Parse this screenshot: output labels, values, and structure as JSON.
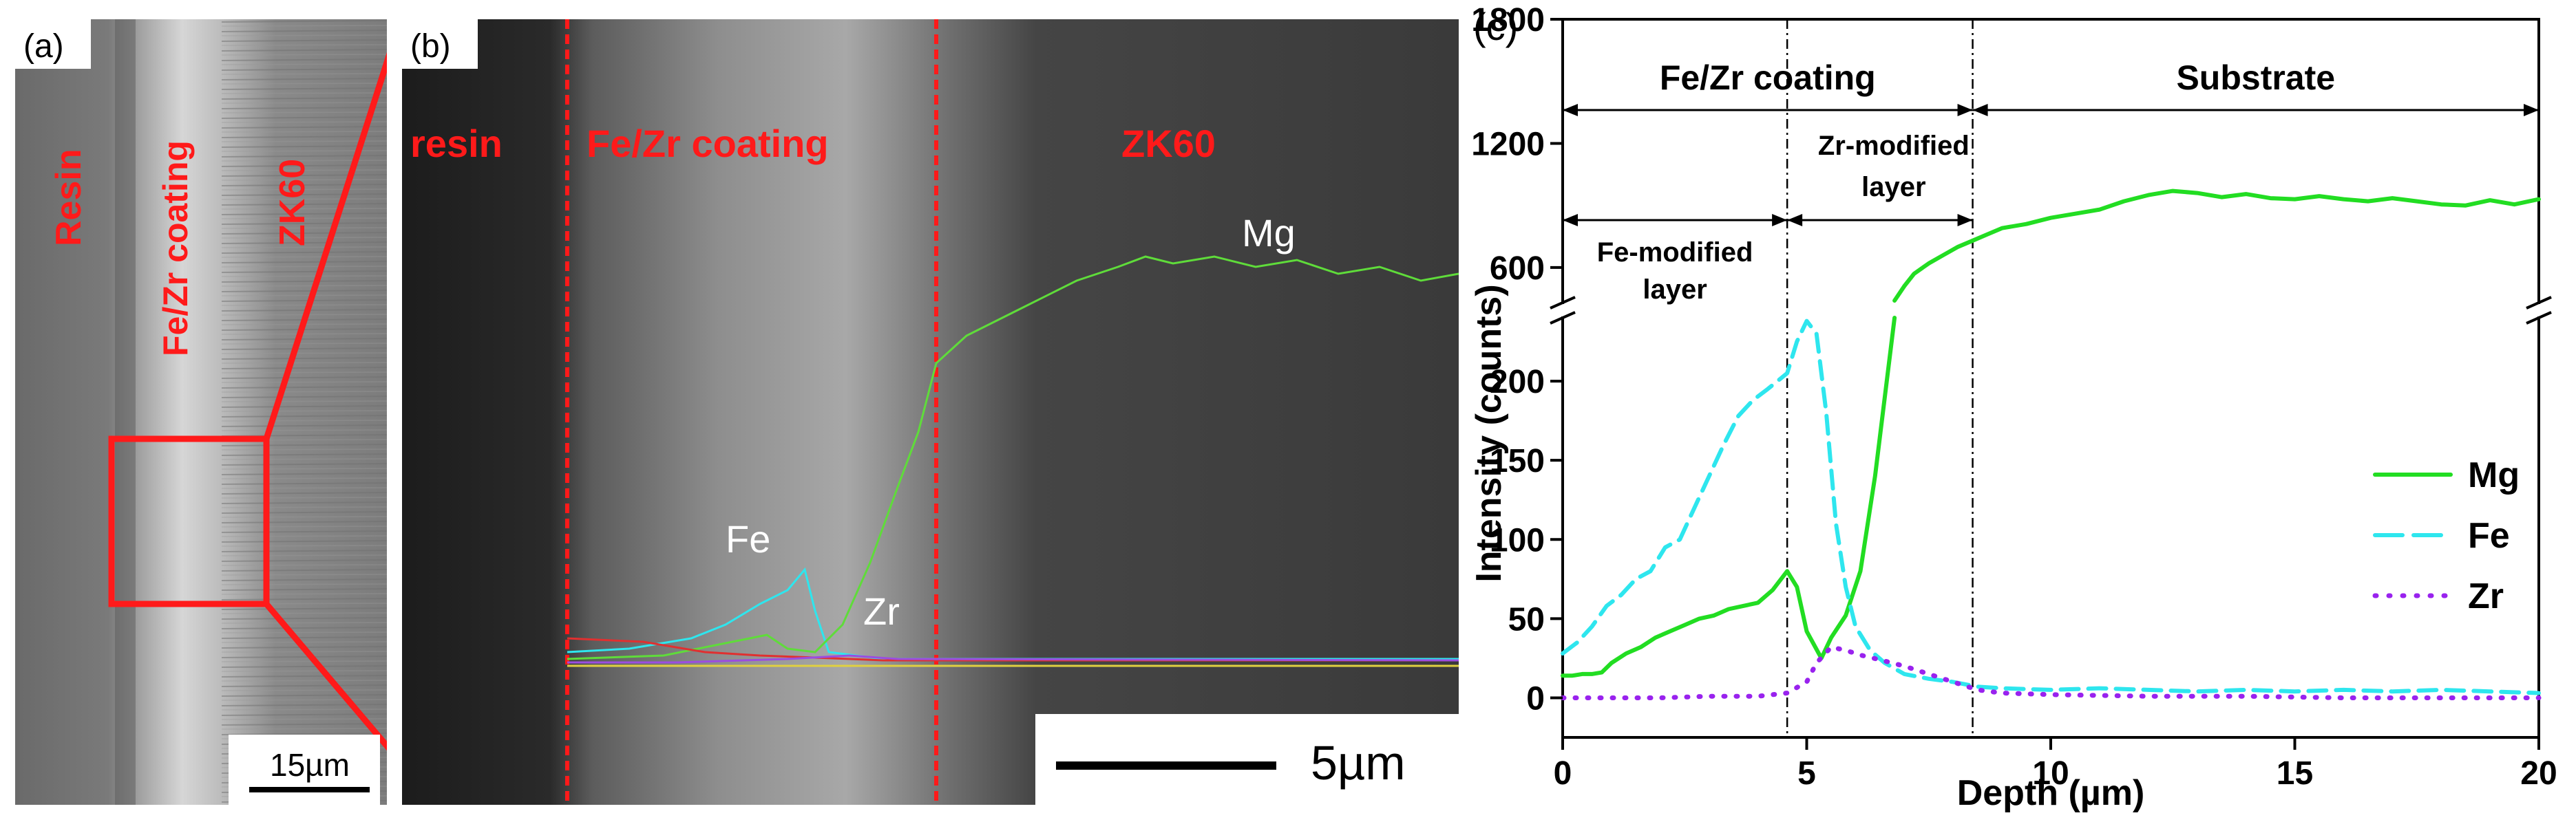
{
  "panel_a": {
    "label": "(a)",
    "text_resin": "Resin",
    "text_coating": "Fe/Zr coating",
    "text_substrate": "ZK60",
    "scalebar": "15µm"
  },
  "panel_b": {
    "label": "(b)",
    "region_resin": "resin",
    "region_coating": "Fe/Zr coating",
    "region_substrate": "ZK60",
    "trace_mg": "Mg",
    "trace_fe": "Fe",
    "trace_zr": "Zr",
    "scalebar": "5µm"
  },
  "colors": {
    "annotation_red": "#ff1a1a",
    "mg": "#22dd22",
    "fe": "#2ee6ee",
    "zr": "#9922ee"
  },
  "chart_data": {
    "type": "line",
    "panel_label": "(c)",
    "xlabel": "Depth (µm)",
    "ylabel": "Intensity (counts)",
    "xlim": [
      0,
      20
    ],
    "x_ticks": [
      0,
      5,
      10,
      15,
      20
    ],
    "y_axis_break": true,
    "y_lower_range": [
      -25,
      240
    ],
    "y_lower_ticks": [
      0,
      50,
      100,
      150,
      200
    ],
    "y_upper_range": [
      430,
      1800
    ],
    "y_upper_ticks": [
      600,
      1200,
      1800
    ],
    "legend": [
      "Mg",
      "Fe",
      "Zr"
    ],
    "legend_position": "lower-right",
    "region_labels": {
      "coating": "Fe/Zr coating",
      "substrate": "Substrate",
      "fe_layer_1": "Fe-modified",
      "fe_layer_2": "layer",
      "zr_layer_1": "Zr-modified",
      "zr_layer_2": "layer"
    },
    "boundaries": [
      4.6,
      8.4
    ],
    "series": [
      {
        "name": "Mg",
        "style": "solid",
        "x": [
          0,
          0.2,
          0.4,
          0.6,
          0.8,
          1.0,
          1.3,
          1.6,
          1.9,
          2.2,
          2.5,
          2.8,
          3.1,
          3.4,
          3.7,
          4.0,
          4.3,
          4.6,
          4.8,
          5.0,
          5.3,
          5.5,
          5.8,
          6.1,
          6.4,
          6.8
        ],
        "y": [
          14,
          14,
          15,
          15,
          16,
          22,
          28,
          32,
          38,
          42,
          46,
          50,
          52,
          56,
          58,
          60,
          68,
          80,
          70,
          42,
          25,
          38,
          52,
          80,
          140,
          240
        ]
      },
      {
        "name": "Mg (upper)",
        "style": "solid",
        "x": [
          6.8,
          7.0,
          7.2,
          7.5,
          7.8,
          8.1,
          8.4,
          8.7,
          9.0,
          9.5,
          10.0,
          10.5,
          11.0,
          11.5,
          12.0,
          12.5,
          13.0,
          13.5,
          14.0,
          14.5,
          15.0,
          15.5,
          16.0,
          16.5,
          17.0,
          17.5,
          18.0,
          18.5,
          19.0,
          19.5,
          20.0
        ],
        "y": [
          440,
          510,
          570,
          620,
          660,
          700,
          730,
          760,
          790,
          810,
          840,
          860,
          880,
          920,
          950,
          970,
          960,
          940,
          955,
          935,
          930,
          945,
          930,
          920,
          935,
          920,
          905,
          900,
          925,
          905,
          930
        ]
      },
      {
        "name": "Fe",
        "style": "dashed",
        "x": [
          0,
          0.3,
          0.6,
          0.9,
          1.2,
          1.5,
          1.8,
          2.1,
          2.4,
          2.7,
          3.0,
          3.3,
          3.6,
          3.9,
          4.2,
          4.6,
          4.8,
          5.0,
          5.2,
          5.4,
          5.6,
          5.8,
          6.0,
          6.3,
          6.6,
          7.0,
          7.5,
          8.0,
          8.5,
          9.0,
          10.0,
          11.0,
          12.0,
          13.0,
          14.0,
          15.0,
          16.0,
          17.0,
          18.0,
          19.0,
          20.0
        ],
        "y": [
          28,
          35,
          45,
          58,
          65,
          75,
          80,
          95,
          100,
          120,
          140,
          160,
          178,
          188,
          195,
          205,
          225,
          238,
          230,
          180,
          110,
          70,
          45,
          30,
          22,
          15,
          12,
          10,
          7,
          6,
          5,
          6,
          5,
          4,
          5,
          4,
          5,
          4,
          5,
          4,
          3
        ]
      },
      {
        "name": "Zr",
        "style": "dotted",
        "x": [
          0,
          1.0,
          2.0,
          3.0,
          4.0,
          4.6,
          5.0,
          5.2,
          5.5,
          5.8,
          6.1,
          6.5,
          7.0,
          7.5,
          8.0,
          8.5,
          9.0,
          10.0,
          12.0,
          14.0,
          16.0,
          18.0,
          20.0
        ],
        "y": [
          0,
          0,
          0,
          1,
          1,
          3,
          10,
          22,
          32,
          30,
          27,
          24,
          20,
          15,
          10,
          5,
          3,
          2,
          1,
          1,
          0,
          0,
          0
        ]
      }
    ]
  }
}
